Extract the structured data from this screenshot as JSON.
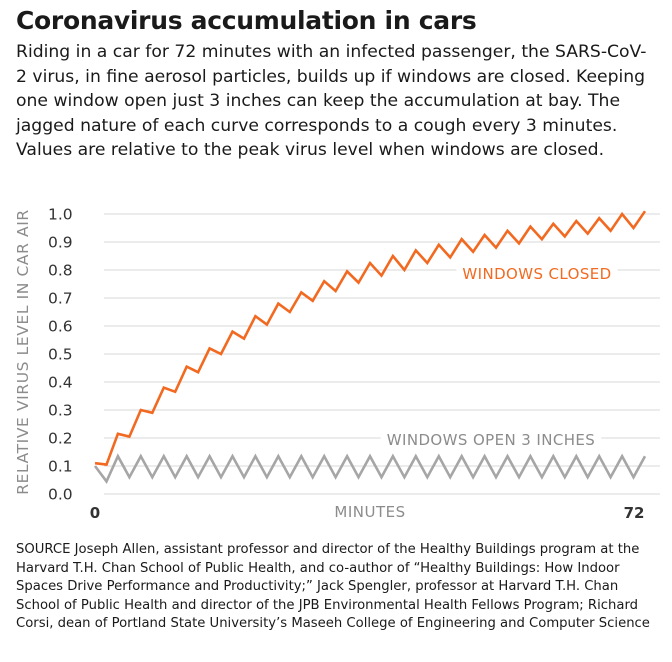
{
  "header": {
    "title": "Coronavirus accumulation in cars",
    "subtitle": "Riding in a car for 72 minutes with an infected passenger, the SARS-CoV-2 virus, in fine aerosol particles, builds up if windows are closed. Keeping one window open just 3 inches can keep the accumulation at bay. The jagged nature of each curve corresponds to a cough every 3 minutes. Values are relative to the peak virus level when windows are closed."
  },
  "chart_data": {
    "type": "line",
    "title": "Coronavirus accumulation in cars",
    "xlabel": "MINUTES",
    "ylabel": "RELATIVE VIRUS LEVEL IN CAR AIR",
    "xlim": [
      0,
      72
    ],
    "ylim": [
      0,
      1.0
    ],
    "x_tick_labels": [
      "0",
      "72"
    ],
    "y_tick_labels": [
      "0.0",
      "0.1",
      "0.2",
      "0.3",
      "0.4",
      "0.5",
      "0.6",
      "0.7",
      "0.8",
      "0.9",
      "1.0"
    ],
    "grid": true,
    "series": [
      {
        "name": "WINDOWS CLOSED",
        "color": "#f26a21",
        "x": [
          0,
          1.5,
          3,
          4.5,
          6,
          7.5,
          9,
          10.5,
          12,
          13.5,
          15,
          16.5,
          18,
          19.5,
          21,
          22.5,
          24,
          25.5,
          27,
          28.5,
          30,
          31.5,
          33,
          34.5,
          36,
          37.5,
          39,
          40.5,
          42,
          43.5,
          45,
          46.5,
          48,
          49.5,
          51,
          52.5,
          54,
          55.5,
          57,
          58.5,
          60,
          61.5,
          63,
          64.5,
          66,
          67.5,
          69,
          70.5,
          72
        ],
        "y": [
          0.11,
          0.105,
          0.215,
          0.205,
          0.3,
          0.29,
          0.38,
          0.365,
          0.455,
          0.435,
          0.52,
          0.5,
          0.58,
          0.555,
          0.635,
          0.605,
          0.68,
          0.65,
          0.72,
          0.69,
          0.76,
          0.725,
          0.795,
          0.755,
          0.825,
          0.78,
          0.85,
          0.8,
          0.87,
          0.825,
          0.89,
          0.845,
          0.91,
          0.865,
          0.925,
          0.88,
          0.94,
          0.895,
          0.955,
          0.91,
          0.965,
          0.92,
          0.975,
          0.93,
          0.985,
          0.94,
          1.0,
          0.95,
          1.01
        ]
      },
      {
        "name": "WINDOWS OPEN 3 INCHES",
        "color": "#a6a6a6",
        "x": [
          0,
          1.5,
          3,
          4.5,
          6,
          7.5,
          9,
          10.5,
          12,
          13.5,
          15,
          16.5,
          18,
          19.5,
          21,
          22.5,
          24,
          25.5,
          27,
          28.5,
          30,
          31.5,
          33,
          34.5,
          36,
          37.5,
          39,
          40.5,
          42,
          43.5,
          45,
          46.5,
          48,
          49.5,
          51,
          52.5,
          54,
          55.5,
          57,
          58.5,
          60,
          61.5,
          63,
          64.5,
          66,
          67.5,
          69,
          70.5,
          72
        ],
        "y": [
          0.1,
          0.045,
          0.135,
          0.06,
          0.135,
          0.06,
          0.135,
          0.06,
          0.135,
          0.06,
          0.135,
          0.06,
          0.135,
          0.06,
          0.135,
          0.06,
          0.135,
          0.06,
          0.135,
          0.06,
          0.135,
          0.06,
          0.135,
          0.06,
          0.135,
          0.06,
          0.135,
          0.06,
          0.135,
          0.06,
          0.135,
          0.06,
          0.135,
          0.06,
          0.135,
          0.06,
          0.135,
          0.06,
          0.135,
          0.06,
          0.135,
          0.06,
          0.135,
          0.06,
          0.135,
          0.06,
          0.135,
          0.06,
          0.135
        ]
      }
    ]
  },
  "source": "SOURCE Joseph Allen, assistant professor and director of the Healthy Buildings program at the Harvard T.H. Chan School of Public Health, and co-author of “Healthy Buildings: How Indoor Spaces Drive Performance and Productivity;” Jack Spengler, professor at Harvard T.H. Chan School of Public Health and director of the JPB Environmental Health Fellows Program; Richard Corsi, dean of Portland State University’s Maseeh College of Engineering and Computer Science"
}
